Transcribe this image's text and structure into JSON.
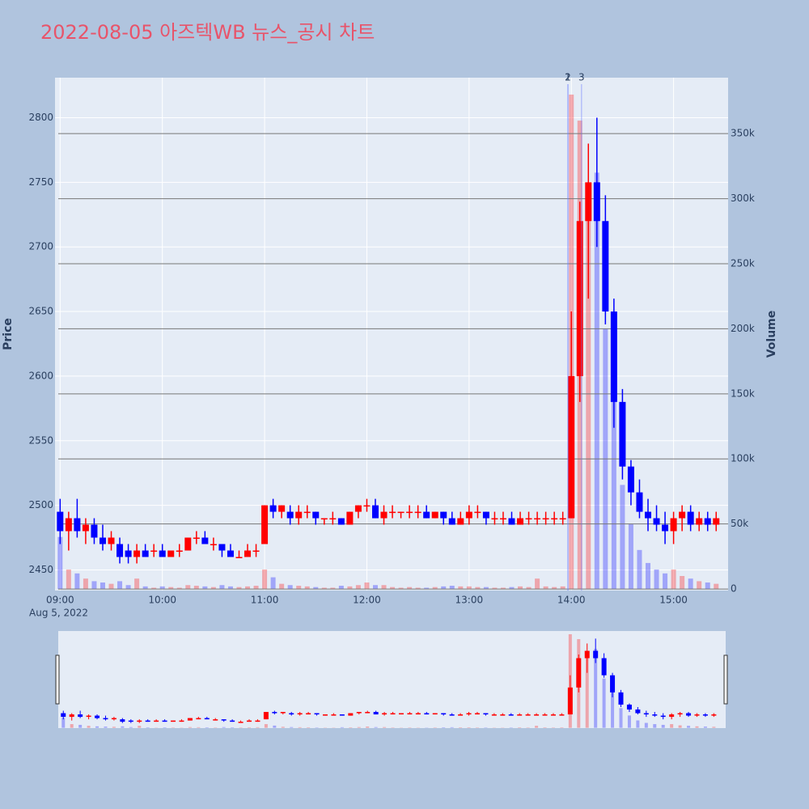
{
  "chart_data": {
    "type": "candlestick",
    "title": "2022-08-05 아즈텍WB 뉴스_공시 차트",
    "y_title": "Price",
    "y2_title": "Volume",
    "date_label": "Aug 5, 2022",
    "increasing_color": "#ff0000",
    "decreasing_color": "#0000ff",
    "xlim": [
      "08:57",
      "15:32"
    ],
    "xticks": [
      "09:00",
      "10:00",
      "11:00",
      "12:00",
      "13:00",
      "14:00",
      "15:00"
    ],
    "ylim": [
      2434,
      2831
    ],
    "yticks": [
      2450,
      2500,
      2550,
      2600,
      2650,
      2700,
      2750,
      2800
    ],
    "y2lim": [
      -1200,
      393000
    ],
    "y2ticks": [
      0,
      {
        "value": 50000,
        "label": "50k"
      },
      {
        "value": 100000,
        "label": "100k"
      },
      {
        "value": 150000,
        "label": "150k"
      },
      {
        "value": 200000,
        "label": "200k"
      },
      {
        "value": 250000,
        "label": "250k"
      },
      {
        "value": 300000,
        "label": "300k"
      },
      {
        "value": 350000,
        "label": "350k"
      }
    ],
    "annotations": [
      {
        "x": "13:58",
        "text": "1"
      },
      {
        "x": "13:58",
        "text": "2"
      },
      {
        "x": "14:06",
        "text": "3"
      }
    ],
    "x": [
      "09:00",
      "09:05",
      "09:10",
      "09:15",
      "09:20",
      "09:25",
      "09:30",
      "09:35",
      "09:40",
      "09:45",
      "09:50",
      "09:55",
      "10:00",
      "10:05",
      "10:10",
      "10:15",
      "10:20",
      "10:25",
      "10:30",
      "10:35",
      "10:40",
      "10:45",
      "10:50",
      "10:55",
      "11:00",
      "11:05",
      "11:10",
      "11:15",
      "11:20",
      "11:25",
      "11:30",
      "11:35",
      "11:40",
      "11:45",
      "11:50",
      "11:55",
      "12:00",
      "12:05",
      "12:10",
      "12:15",
      "12:20",
      "12:25",
      "12:30",
      "12:35",
      "12:40",
      "12:45",
      "12:50",
      "12:55",
      "13:00",
      "13:05",
      "13:10",
      "13:15",
      "13:20",
      "13:25",
      "13:30",
      "13:35",
      "13:40",
      "13:45",
      "13:50",
      "13:55",
      "14:00",
      "14:05",
      "14:10",
      "14:15",
      "14:20",
      "14:25",
      "14:30",
      "14:35",
      "14:40",
      "14:45",
      "14:50",
      "14:55",
      "15:00",
      "15:05",
      "15:10",
      "15:15",
      "15:20",
      "15:25"
    ],
    "open": [
      2495,
      2480,
      2490,
      2480,
      2485,
      2475,
      2470,
      2470,
      2465,
      2460,
      2465,
      2465,
      2465,
      2460,
      2465,
      2465,
      2475,
      2475,
      2470,
      2470,
      2465,
      2460,
      2460,
      2465,
      2470,
      2500,
      2495,
      2495,
      2490,
      2495,
      2495,
      2490,
      2490,
      2490,
      2485,
      2495,
      2500,
      2500,
      2490,
      2495,
      2495,
      2495,
      2495,
      2495,
      2490,
      2495,
      2490,
      2485,
      2490,
      2495,
      2495,
      2490,
      2490,
      2490,
      2485,
      2490,
      2490,
      2490,
      2490,
      2490,
      2490,
      2600,
      2720,
      2750,
      2720,
      2650,
      2580,
      2530,
      2510,
      2495,
      2490,
      2485,
      2480,
      2490,
      2495,
      2485,
      2490,
      2485
    ],
    "high": [
      2505,
      2495,
      2505,
      2490,
      2490,
      2485,
      2480,
      2475,
      2470,
      2470,
      2470,
      2470,
      2470,
      2465,
      2470,
      2475,
      2480,
      2480,
      2475,
      2470,
      2470,
      2465,
      2470,
      2470,
      2500,
      2505,
      2500,
      2500,
      2500,
      2500,
      2495,
      2490,
      2495,
      2490,
      2495,
      2500,
      2505,
      2505,
      2500,
      2500,
      2495,
      2500,
      2500,
      2500,
      2495,
      2495,
      2495,
      2495,
      2500,
      2500,
      2495,
      2495,
      2495,
      2495,
      2495,
      2495,
      2495,
      2495,
      2495,
      2495,
      2650,
      2735,
      2780,
      2800,
      2740,
      2660,
      2590,
      2535,
      2520,
      2505,
      2500,
      2495,
      2495,
      2500,
      2500,
      2495,
      2495,
      2495
    ],
    "low": [
      2470,
      2465,
      2475,
      2470,
      2470,
      2465,
      2465,
      2455,
      2455,
      2455,
      2460,
      2460,
      2460,
      2460,
      2460,
      2465,
      2470,
      2470,
      2465,
      2460,
      2460,
      2460,
      2460,
      2460,
      2470,
      2490,
      2490,
      2485,
      2485,
      2490,
      2485,
      2485,
      2485,
      2485,
      2485,
      2490,
      2495,
      2490,
      2485,
      2490,
      2490,
      2490,
      2490,
      2490,
      2490,
      2485,
      2485,
      2485,
      2485,
      2490,
      2485,
      2485,
      2485,
      2485,
      2485,
      2485,
      2485,
      2485,
      2485,
      2485,
      2490,
      2580,
      2660,
      2700,
      2640,
      2560,
      2520,
      2500,
      2490,
      2480,
      2480,
      2470,
      2470,
      2480,
      2480,
      2480,
      2480,
      2480
    ],
    "close": [
      2480,
      2490,
      2480,
      2485,
      2475,
      2470,
      2475,
      2460,
      2460,
      2465,
      2460,
      2465,
      2460,
      2465,
      2465,
      2475,
      2475,
      2470,
      2470,
      2465,
      2460,
      2460,
      2465,
      2465,
      2500,
      2495,
      2500,
      2490,
      2495,
      2495,
      2490,
      2490,
      2490,
      2485,
      2495,
      2500,
      2500,
      2490,
      2495,
      2495,
      2495,
      2495,
      2495,
      2490,
      2495,
      2490,
      2485,
      2490,
      2495,
      2495,
      2490,
      2490,
      2490,
      2485,
      2490,
      2490,
      2490,
      2490,
      2490,
      2490,
      2600,
      2720,
      2750,
      2720,
      2650,
      2580,
      2530,
      2510,
      2495,
      2490,
      2485,
      2480,
      2490,
      2495,
      2485,
      2490,
      2485,
      2490
    ],
    "volume": [
      40000,
      15000,
      12000,
      8000,
      6000,
      5000,
      4000,
      6000,
      3000,
      8000,
      2000,
      1000,
      2000,
      1500,
      1000,
      3000,
      2500,
      2000,
      1500,
      3000,
      2000,
      1500,
      2000,
      2500,
      15000,
      9000,
      4000,
      3000,
      2500,
      2000,
      1500,
      1000,
      1000,
      2500,
      2000,
      3000,
      5000,
      3000,
      3000,
      1500,
      1000,
      1500,
      1000,
      1000,
      1500,
      2000,
      2500,
      2000,
      2000,
      1500,
      1500,
      1000,
      1000,
      1500,
      2000,
      1500,
      8000,
      2000,
      1500,
      2000,
      380000,
      360000,
      300000,
      320000,
      200000,
      150000,
      80000,
      50000,
      30000,
      20000,
      15000,
      12000,
      15000,
      10000,
      8000,
      6000,
      5000,
      4000
    ]
  }
}
